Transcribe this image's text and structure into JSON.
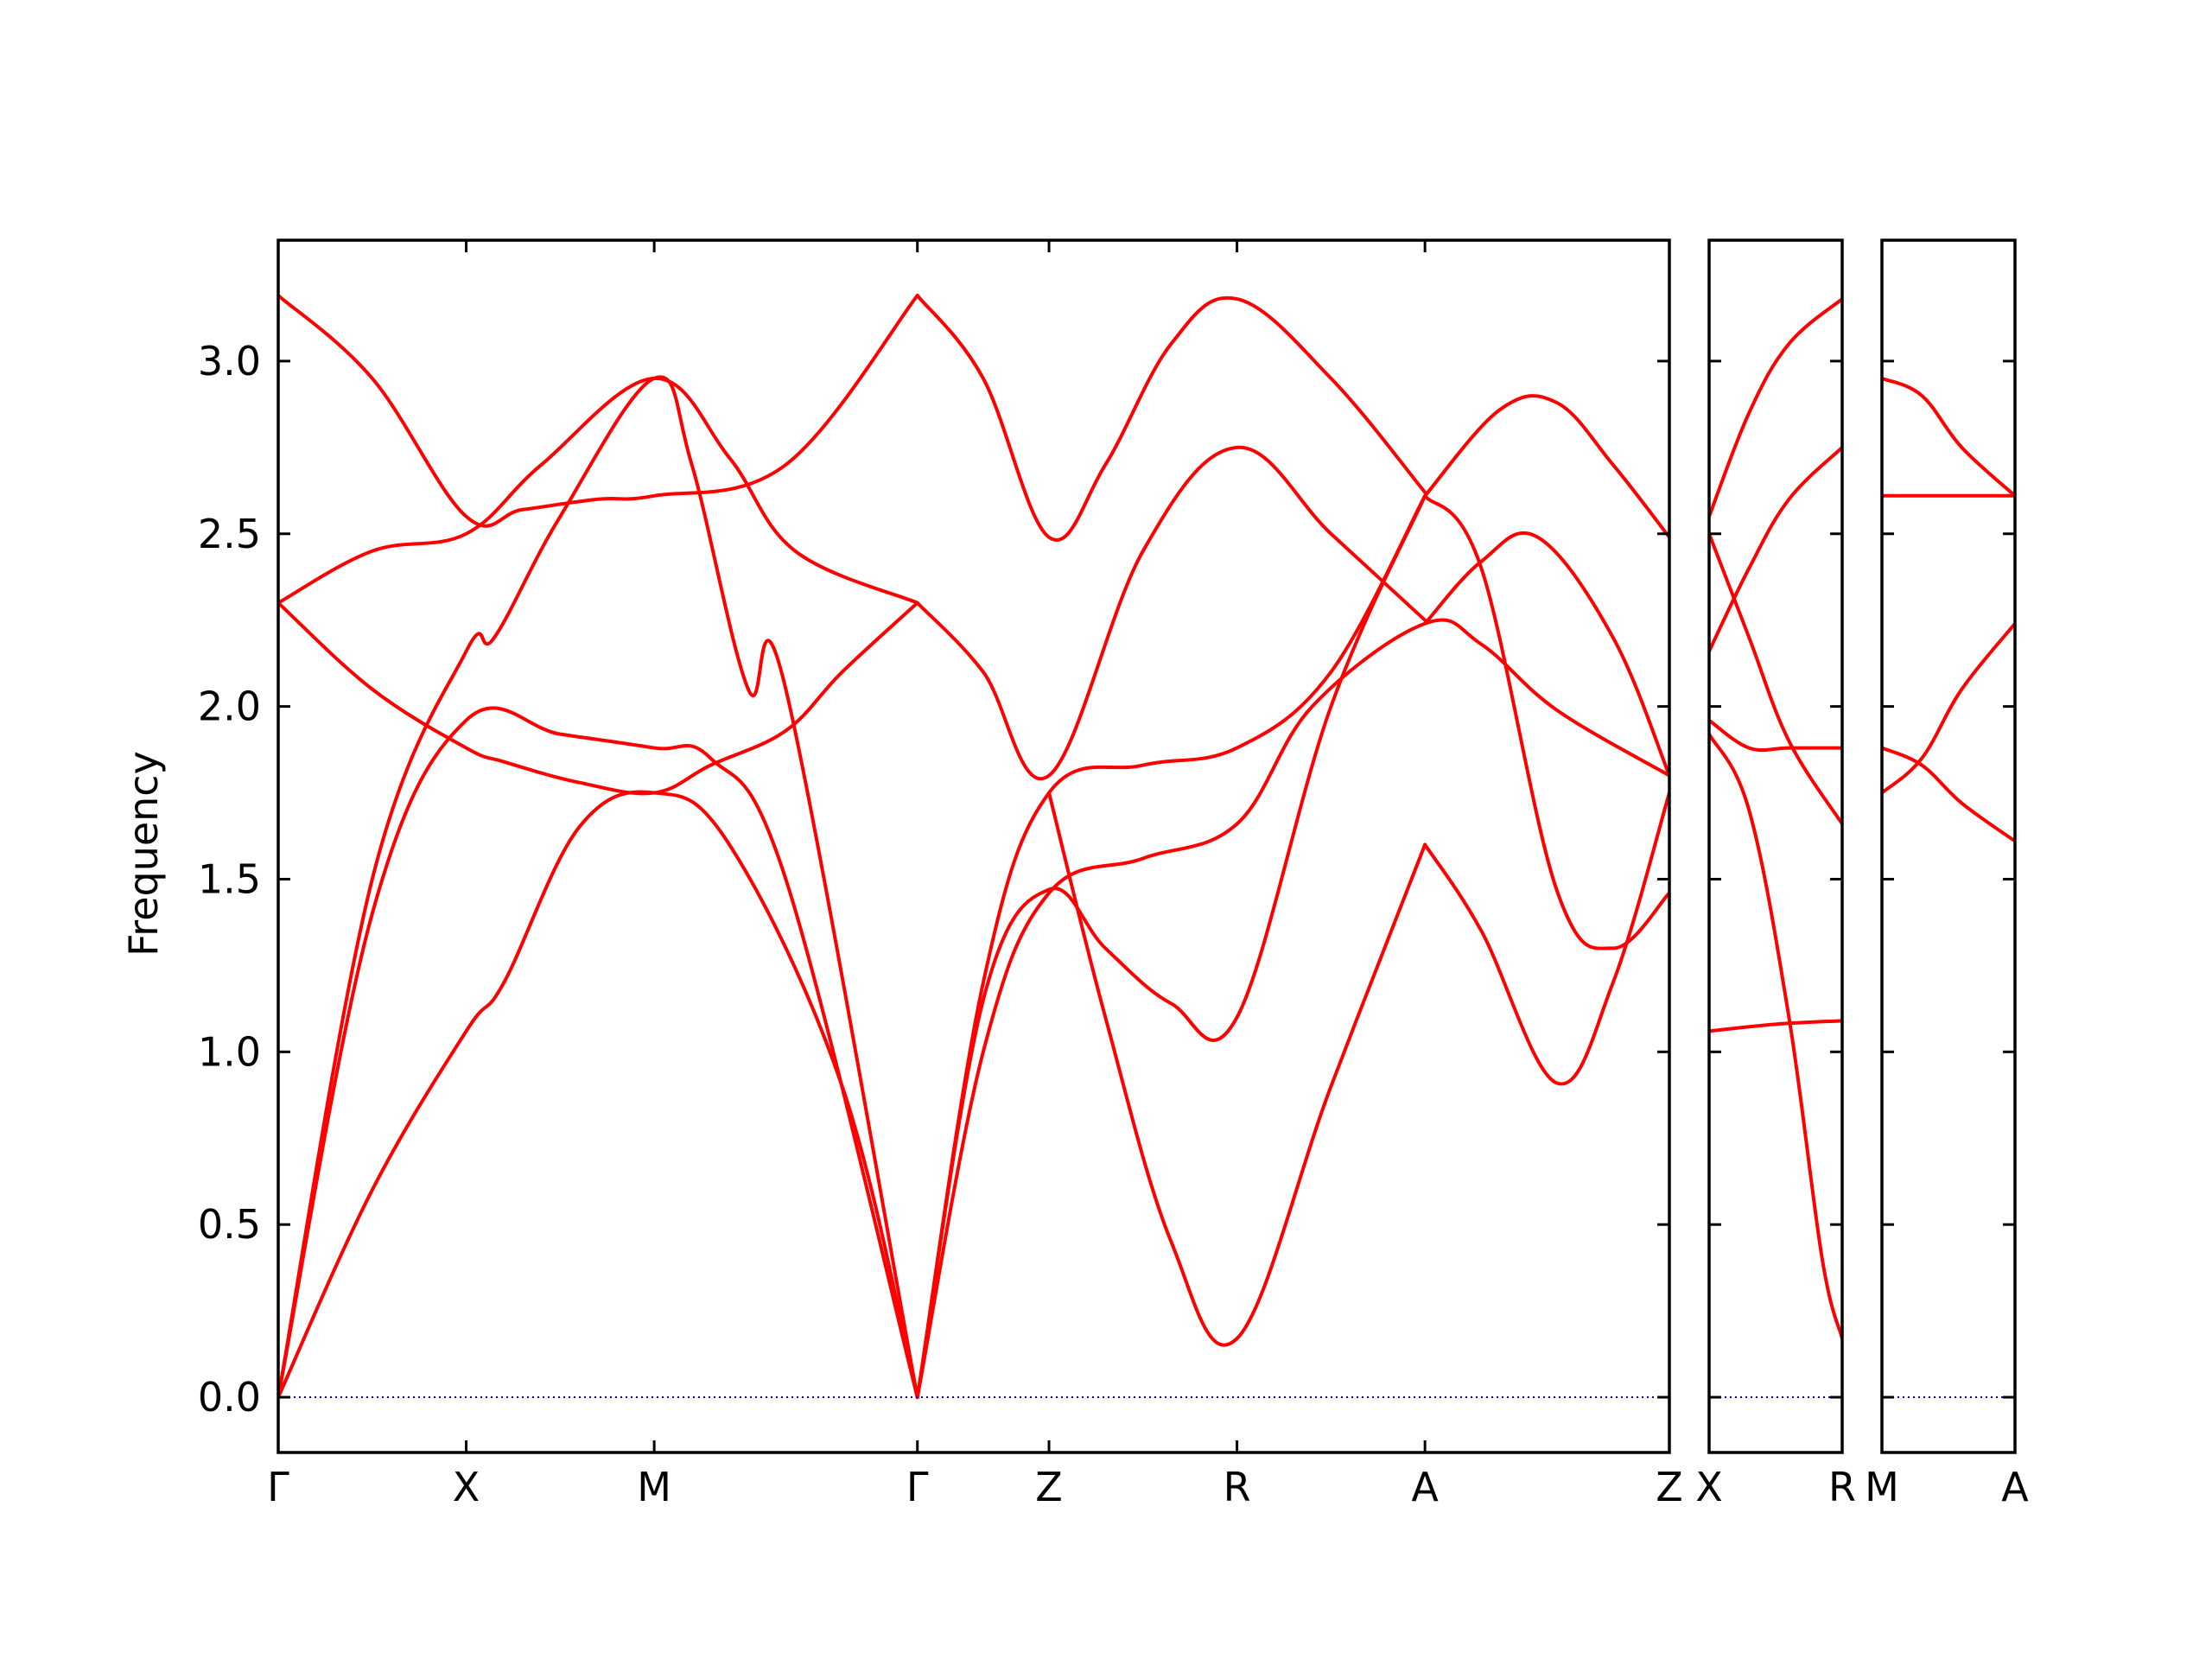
{
  "chart_data": {
    "type": "line",
    "ylabel": "Frequency",
    "ylim": [
      -0.16,
      3.35
    ],
    "yticks": [
      "0.0",
      "0.5",
      "1.0",
      "1.5",
      "2.0",
      "2.5",
      "3.0"
    ],
    "ytick_values": [
      0,
      0.5,
      1.0,
      1.5,
      2.0,
      2.5,
      3.0
    ],
    "band_color": "#ff0000",
    "zero_line_color": "#0000cc",
    "panels": [
      {
        "xlim": [
          0,
          7.4
        ],
        "xticks": [
          {
            "label": "Γ",
            "x": 0
          },
          {
            "label": "X",
            "x": 1
          },
          {
            "label": "M",
            "x": 2
          },
          {
            "label": "Γ",
            "x": 3.4
          },
          {
            "label": "Z",
            "x": 4.1
          },
          {
            "label": "R",
            "x": 5.1
          },
          {
            "label": "A",
            "x": 6.1
          },
          {
            "label": "Z",
            "x": 7.5
          }
        ],
        "series": [
          {
            "x": [
              0,
              0.5,
              1,
              1.3,
              1.7,
              2,
              2.7,
              3.4
            ],
            "y": [
              3.19,
              2.95,
              2.55,
              2.57,
              2.6,
              2.61,
              2.7,
              3.19
            ]
          },
          {
            "x": [
              3.4,
              3.75,
              4.1,
              4.4,
              4.75,
              5.1,
              5.6,
              6.1
            ],
            "y": [
              3.19,
              2.95,
              2.49,
              2.7,
              3.05,
              3.18,
              2.95,
              2.62
            ]
          },
          {
            "x": [
              0,
              0.5,
              1,
              1.4,
              2,
              2.4,
              2.75,
              3.4
            ],
            "y": [
              2.3,
              2.45,
              2.5,
              2.7,
              2.95,
              2.72,
              2.45,
              2.3
            ]
          },
          {
            "x": [
              3.4,
              3.75,
              4.1,
              4.6,
              5.1,
              5.6,
              6.1
            ],
            "y": [
              2.3,
              2.1,
              1.8,
              2.45,
              2.75,
              2.5,
              2.25
            ]
          },
          {
            "x": [
              0,
              0.5,
              1,
              1.2,
              1.6,
              2,
              2.3,
              2.7,
              3.0,
              3.4
            ],
            "y": [
              2.3,
              2.05,
              1.88,
              1.84,
              1.78,
              1.75,
              1.83,
              1.93,
              2.1,
              2.3
            ]
          },
          {
            "x": [
              0,
              0.5,
              1,
              1.15,
              1.5,
              2,
              2.2,
              2.5,
              2.7,
              3.4
            ],
            "y": [
              0,
              1.5,
              2.16,
              2.2,
              2.55,
              2.95,
              2.7,
              2.05,
              2.05,
              0
            ]
          },
          {
            "x": [
              0,
              0.5,
              1,
              1.5,
              2,
              2.3,
              2.7,
              3.4
            ],
            "y": [
              0,
              1.4,
              1.96,
              1.92,
              1.88,
              1.85,
              1.5,
              0
            ]
          },
          {
            "x": [
              0,
              0.5,
              1,
              1.2,
              1.6,
              2,
              2.4,
              3.0,
              3.4
            ],
            "y": [
              0,
              0.6,
              1.06,
              1.2,
              1.65,
              1.75,
              1.6,
              0.9,
              0
            ]
          },
          {
            "x": [
              3.4,
              3.75,
              4.1,
              4.6,
              5.1,
              5.5,
              6.1,
              6.4,
              6.8,
              7.4
            ],
            "y": [
              0,
              1.0,
              1.46,
              1.56,
              1.66,
              2.0,
              2.24,
              2.18,
              1.99,
              1.8
            ]
          },
          {
            "x": [
              3.4,
              3.75,
              4.1,
              4.6,
              5.1,
              5.6,
              6.1
            ],
            "y": [
              0,
              1.2,
              1.75,
              1.83,
              1.88,
              2.1,
              2.61
            ]
          },
          {
            "x": [
              3.4,
              3.75,
              4.1,
              4.4,
              4.75,
              5.1,
              5.6,
              6.1
            ],
            "y": [
              0,
              1.15,
              1.47,
              1.3,
              1.14,
              1.1,
              2.0,
              2.61
            ]
          },
          {
            "x": [
              4.1,
              4.4,
              4.75,
              5.1,
              5.6,
              6.1
            ],
            "y": [
              1.75,
              1.1,
              0.45,
              0.17,
              0.9,
              1.6
            ]
          },
          {
            "x": [
              6.1,
              6.5,
              6.8,
              7.1,
              7.4
            ],
            "y": [
              2.61,
              2.86,
              2.88,
              2.7,
              2.49
            ]
          },
          {
            "x": [
              6.1,
              6.4,
              6.8,
              7.1,
              7.4
            ],
            "y": [
              2.61,
              2.4,
              1.47,
              1.3,
              1.46
            ]
          },
          {
            "x": [
              6.1,
              6.4,
              6.7,
              7.1,
              7.4
            ],
            "y": [
              2.24,
              2.42,
              2.49,
              2.2,
              1.8
            ]
          },
          {
            "x": [
              6.1,
              6.4,
              6.8,
              7.1,
              7.4
            ],
            "y": [
              1.6,
              1.35,
              0.91,
              1.2,
              1.75
            ]
          },
          {
            "x": [
              0,
              7.4
            ],
            "y": [
              0,
              0
            ],
            "role": "zero"
          }
        ]
      },
      {
        "xlim": [
          0,
          1
        ],
        "xticks": [
          {
            "label": "X",
            "x": 0
          },
          {
            "label": "R",
            "x": 1
          }
        ],
        "series": [
          {
            "x": [
              0,
              0.3,
              0.6,
              1
            ],
            "y": [
              2.55,
              2.85,
              3.05,
              3.18
            ]
          },
          {
            "x": [
              0,
              0.3,
              0.6,
              1
            ],
            "y": [
              2.16,
              2.4,
              2.6,
              2.75
            ]
          },
          {
            "x": [
              0,
              0.3,
              0.6,
              1
            ],
            "y": [
              2.5,
              2.2,
              1.9,
              1.66
            ]
          },
          {
            "x": [
              0,
              0.3,
              0.6,
              1
            ],
            "y": [
              1.96,
              1.88,
              1.88,
              1.88
            ]
          },
          {
            "x": [
              0,
              0.3,
              0.6,
              0.85,
              1
            ],
            "y": [
              1.92,
              1.7,
              1.1,
              0.4,
              0.17
            ]
          },
          {
            "x": [
              0,
              0.5,
              1
            ],
            "y": [
              1.06,
              1.08,
              1.09
            ]
          },
          {
            "x": [
              0,
              1
            ],
            "y": [
              0,
              0
            ],
            "role": "zero"
          }
        ]
      },
      {
        "xlim": [
          0,
          1
        ],
        "xticks": [
          {
            "label": "M",
            "x": 0
          },
          {
            "label": "A",
            "x": 1
          }
        ],
        "series": [
          {
            "x": [
              0,
              0.3,
              0.6,
              1
            ],
            "y": [
              2.95,
              2.9,
              2.75,
              2.61
            ]
          },
          {
            "x": [
              0,
              1
            ],
            "y": [
              2.61,
              2.61
            ]
          },
          {
            "x": [
              0,
              0.3,
              0.6,
              1
            ],
            "y": [
              1.75,
              1.85,
              2.05,
              2.24
            ]
          },
          {
            "x": [
              0,
              0.3,
              0.6,
              1
            ],
            "y": [
              1.88,
              1.83,
              1.72,
              1.61
            ]
          },
          {
            "x": [
              0,
              1
            ],
            "y": [
              0,
              0
            ],
            "role": "zero"
          }
        ]
      }
    ]
  }
}
